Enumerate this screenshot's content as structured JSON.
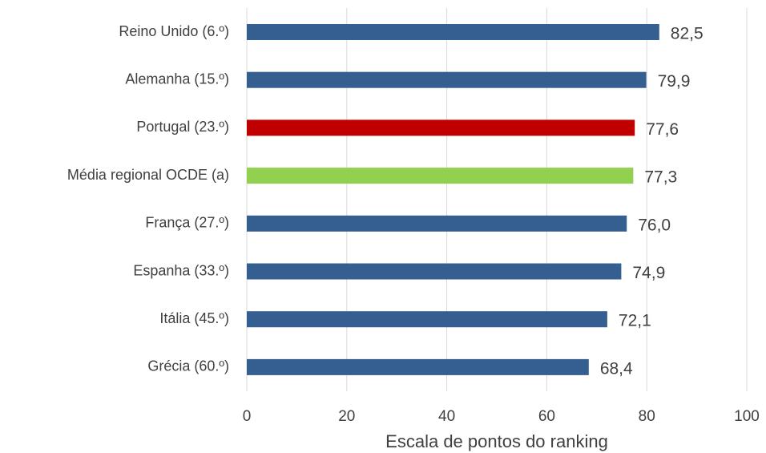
{
  "chart_data": {
    "type": "bar",
    "orientation": "horizontal",
    "categories": [
      "Reino Unido (6.º)",
      "Alemanha (15.º)",
      "Portugal (23.º)",
      "Média regional OCDE (a)",
      "França (27.º)",
      "Espanha (33.º)",
      "Itália (45.º)",
      "Grécia (60.º)"
    ],
    "values": [
      82.5,
      79.9,
      77.6,
      77.3,
      76.0,
      74.9,
      72.1,
      68.4
    ],
    "value_labels": [
      "82,5",
      "79,9",
      "77,6",
      "77,3",
      "76,0",
      "74,9",
      "72,1",
      "68,4"
    ],
    "colors": [
      "#355f91",
      "#355f91",
      "#c00000",
      "#92d050",
      "#355f91",
      "#355f91",
      "#355f91",
      "#355f91"
    ],
    "xlim": [
      0,
      100
    ],
    "xticks": [
      0,
      20,
      40,
      60,
      80,
      100
    ],
    "grid": true,
    "xlabel": "Escala de pontos do ranking"
  }
}
